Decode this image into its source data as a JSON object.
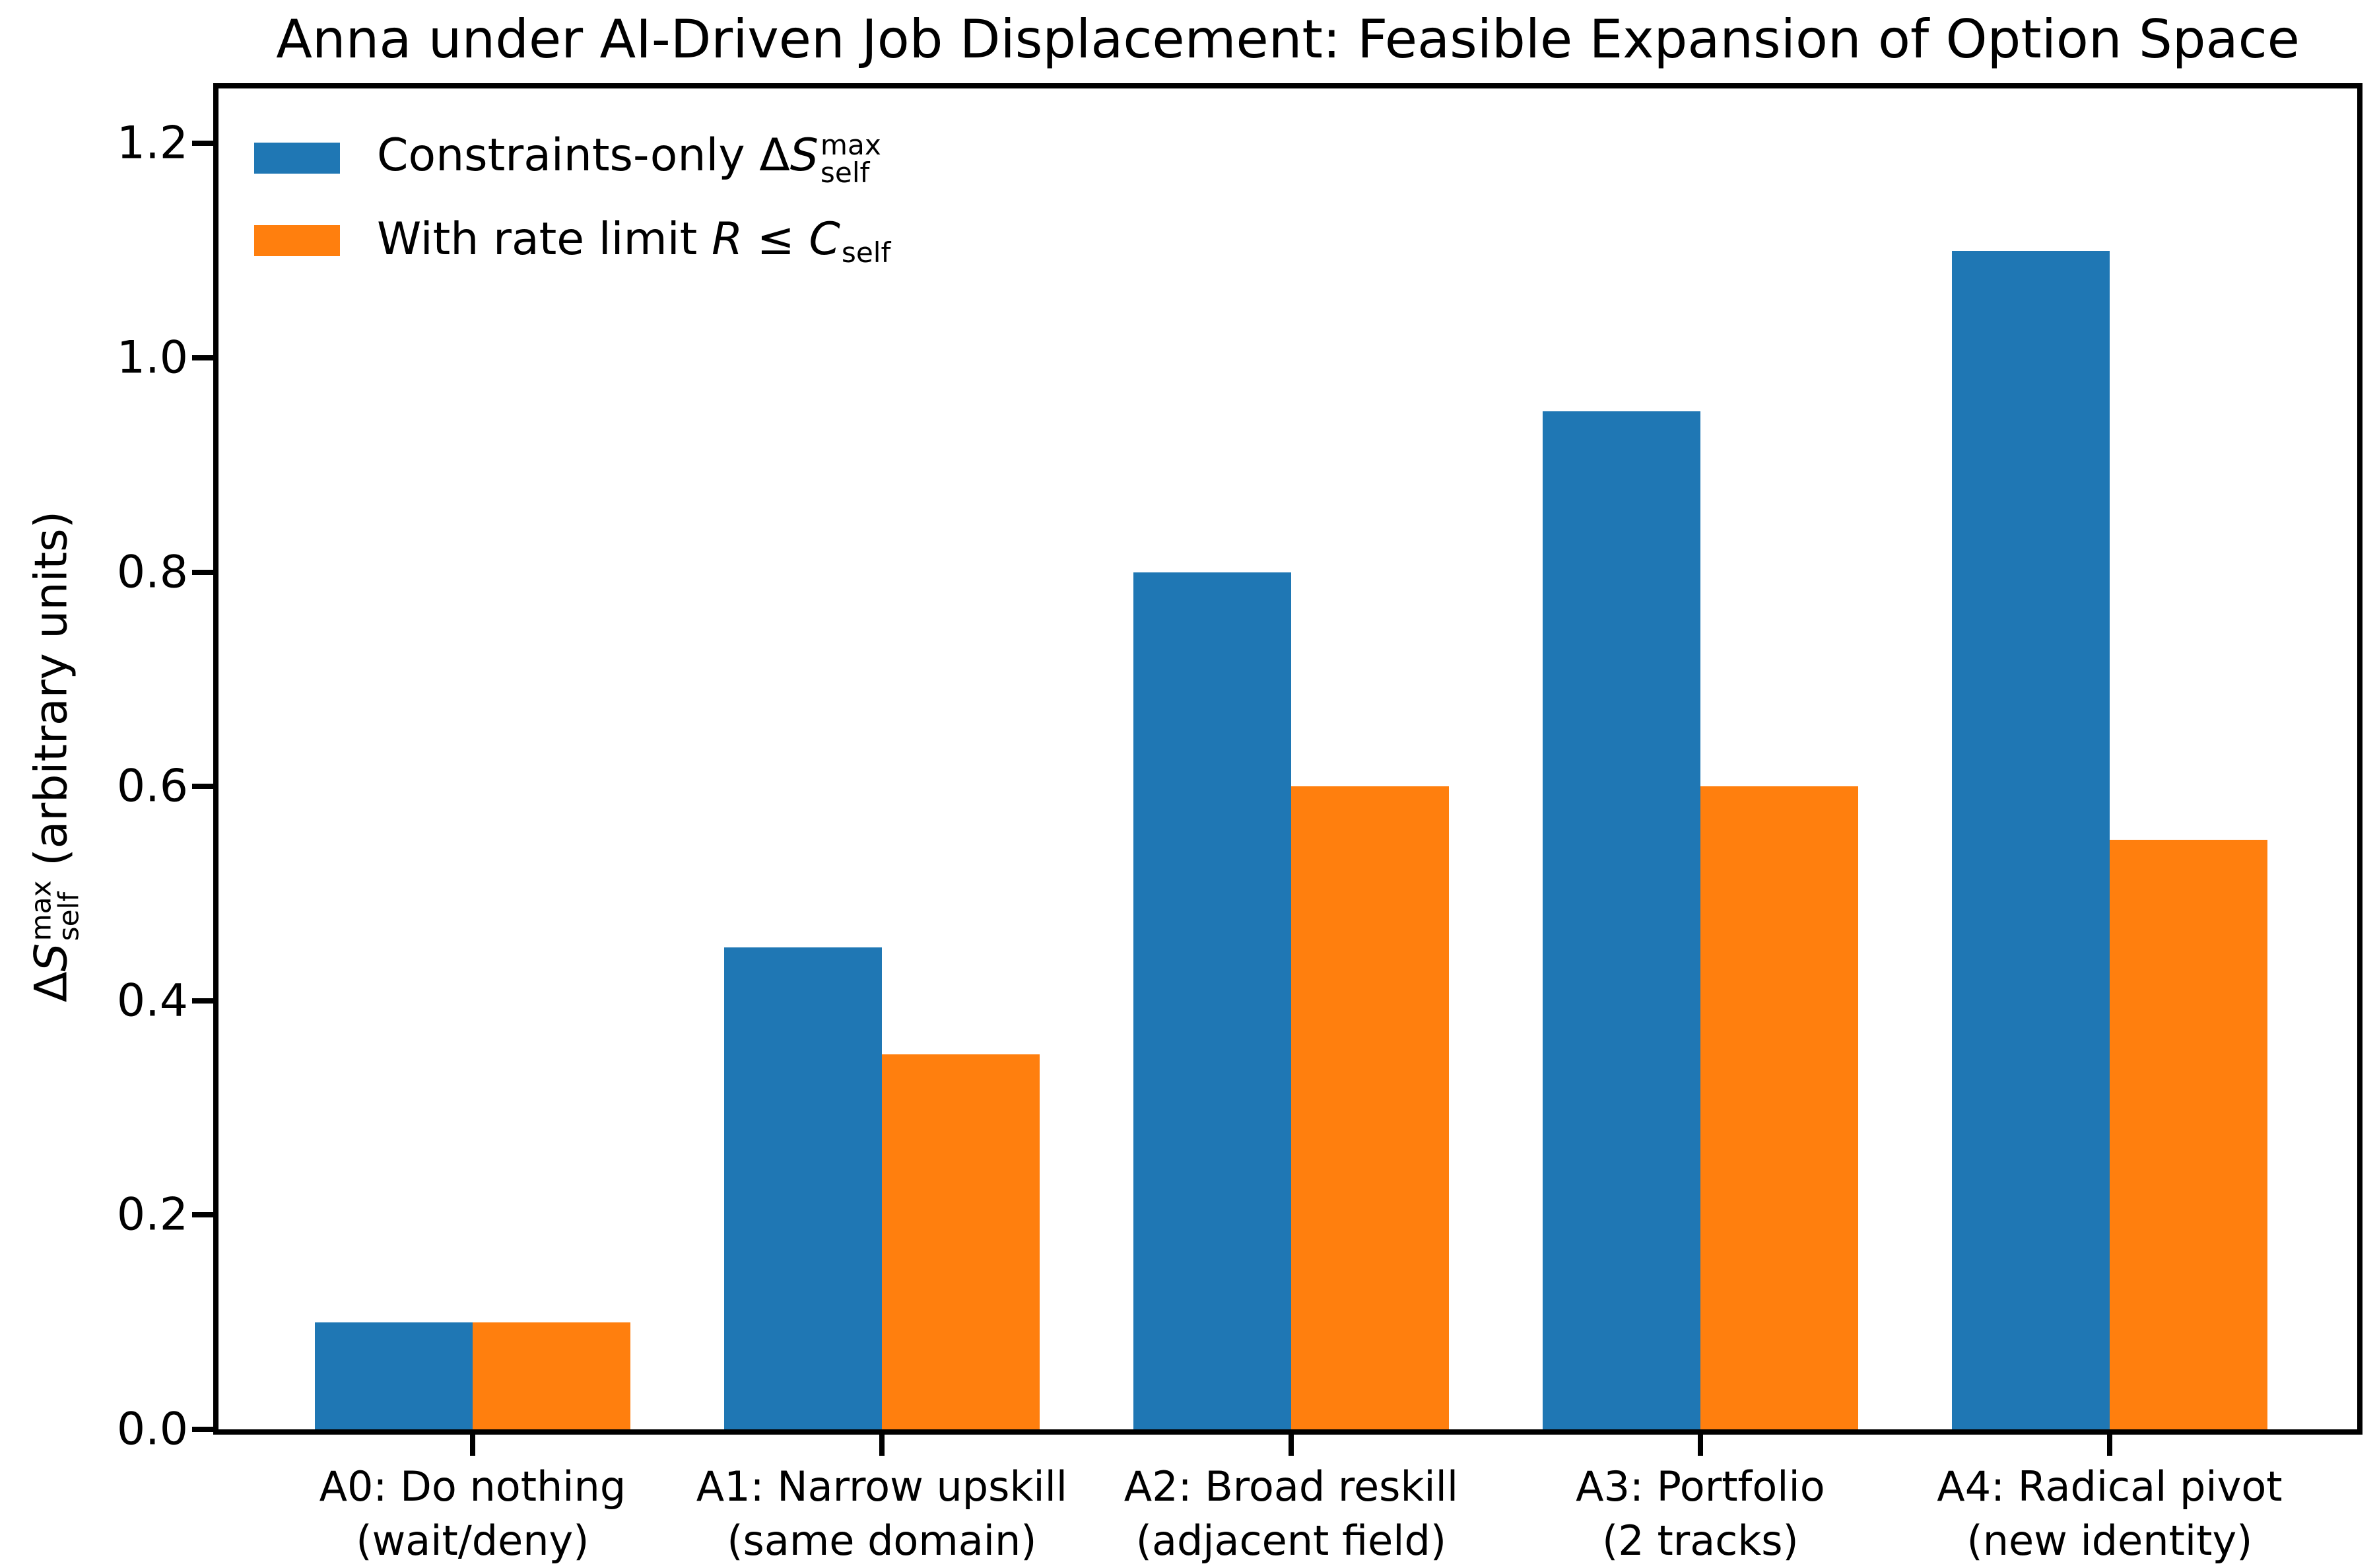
{
  "chart_data": {
    "type": "bar",
    "title": "Anna under AI-Driven Job Displacement: Feasible Expansion of Option Space",
    "ylabel": "ΔS_self^max (arbitrary units)",
    "categories": [
      "A0: Do nothing\n(wait/deny)",
      "A1: Narrow upskill\n(same domain)",
      "A2: Broad reskill\n(adjacent field)",
      "A3: Portfolio\n(2 tracks)",
      "A4: Radical pivot\n(new identity)"
    ],
    "series": [
      {
        "name": "Constraints-only ΔS_self^max",
        "color": "#1f77b4",
        "values": [
          0.1,
          0.45,
          0.8,
          0.95,
          1.1
        ]
      },
      {
        "name": "With rate limit R ≤ C_self",
        "color": "#ff7f0e",
        "values": [
          0.1,
          0.35,
          0.6,
          0.6,
          0.55
        ]
      }
    ],
    "ylim": [
      0,
      1.25
    ],
    "yticks": [
      0.0,
      0.2,
      0.4,
      0.6,
      0.8,
      1.0,
      1.2
    ],
    "ytick_labels": [
      "0.0",
      "0.2",
      "0.4",
      "0.6",
      "0.8",
      "1.0",
      "1.2"
    ],
    "grid": false,
    "legend_position": "upper left",
    "bar_width_fraction": 0.38,
    "ylabel_rich": [
      {
        "t": "Δ"
      },
      {
        "t": "S",
        "i": true,
        "sup": "max",
        "sub": "self"
      },
      {
        "t": " (arbitrary units)"
      }
    ],
    "legend_rich": [
      {
        "color": "#1f77b4",
        "segments": [
          {
            "t": "Constraints-only Δ"
          },
          {
            "t": "S",
            "i": true,
            "sup": "max",
            "sub": "self"
          }
        ]
      },
      {
        "color": "#ff7f0e",
        "segments": [
          {
            "t": "With rate limit "
          },
          {
            "t": "R",
            "i": true
          },
          {
            "t": " ≤ "
          },
          {
            "t": "C",
            "i": true,
            "sub": "self"
          }
        ]
      }
    ]
  }
}
